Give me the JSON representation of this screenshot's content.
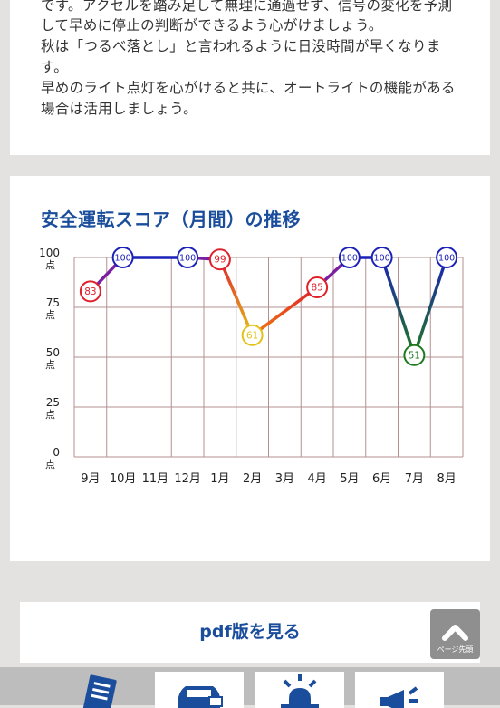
{
  "advice": {
    "lines": [
      "です。アクセルを踏み足して無理に通過せず、信号の変化を予測",
      "して早めに停止の判断ができるよう心がけましょう。",
      "秋は「つるべ落とし」と言われるように日没時間が早くなりま",
      "す。",
      "早めのライト点灯を心がけると共に、オートライトの機能がある",
      "場合は活用しましょう。"
    ]
  },
  "chart_title": "安全運転スコア（月間）の推移",
  "chart_data": {
    "type": "line",
    "categories": [
      "9月",
      "10月",
      "11月",
      "12月",
      "1月",
      "2月",
      "3月",
      "4月",
      "5月",
      "6月",
      "7月",
      "8月"
    ],
    "points": [
      {
        "category": "9月",
        "value": 83
      },
      {
        "category": "10月",
        "value": 100
      },
      {
        "category": "12月",
        "value": 100
      },
      {
        "category": "1月",
        "value": 99
      },
      {
        "category": "2月",
        "value": 61
      },
      {
        "category": "4月",
        "value": 85
      },
      {
        "category": "5月",
        "value": 100
      },
      {
        "category": "6月",
        "value": 100
      },
      {
        "category": "7月",
        "value": 51
      },
      {
        "category": "8月",
        "value": 100
      }
    ],
    "ylim": [
      0,
      100
    ],
    "y_ticks": [
      {
        "value": 100,
        "label": "100",
        "unit": "点"
      },
      {
        "value": 75,
        "label": "75",
        "unit": "点"
      },
      {
        "value": 50,
        "label": "50",
        "unit": "点"
      },
      {
        "value": 25,
        "label": "25",
        "unit": "点"
      },
      {
        "value": 0,
        "label": "0",
        "unit": "点"
      }
    ],
    "grid": true,
    "colors": {
      "score_100": "#1c22b8",
      "score_90s": "#e0202a",
      "score_80s": "#e0202a",
      "score_60s": "#e3c21a",
      "score_50s": "#1f7a1f",
      "violet": "#7a1fa0",
      "orange": "#f07a10",
      "grid": "#b49090"
    }
  },
  "pdf_button": {
    "label": "pdf版を見る"
  },
  "page_top_button": {
    "label": "ページ先頭"
  },
  "bottom_tabs": [
    {
      "icon": "document-icon"
    },
    {
      "icon": "car-icon"
    },
    {
      "icon": "beacon-icon"
    },
    {
      "icon": "megaphone-icon"
    }
  ]
}
